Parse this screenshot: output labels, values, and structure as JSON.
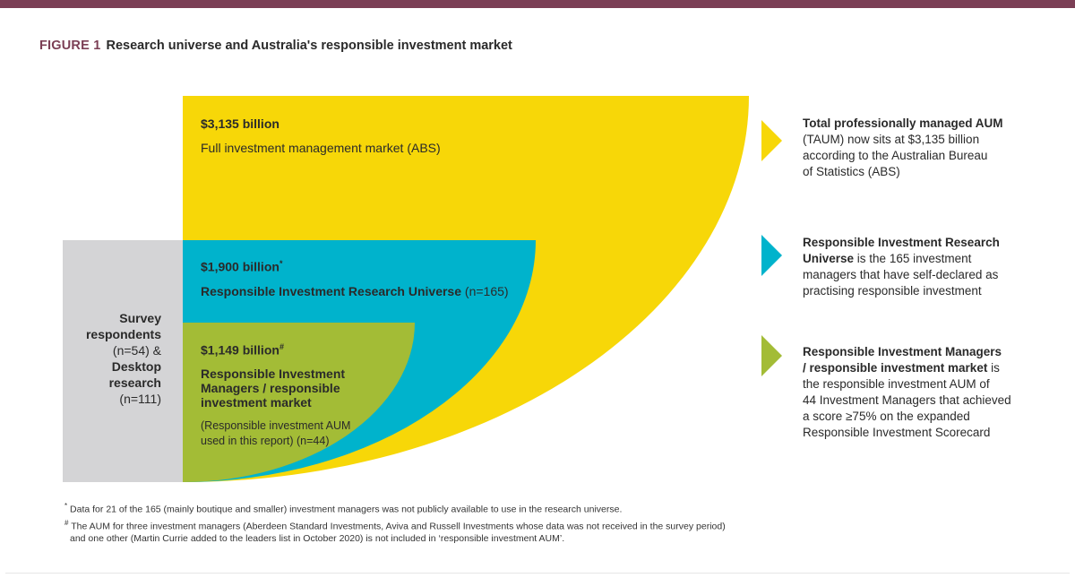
{
  "figure": {
    "number": "FIGURE 1",
    "title": "Research universe and Australia's responsible investment market"
  },
  "colors": {
    "yellow": "#f7d708",
    "blue": "#00b3cc",
    "green": "#a3bc36",
    "grey": "#d4d4d6",
    "accent": "#7b3f55"
  },
  "tiers": {
    "full_market": {
      "value": "$3,135 billion",
      "label": "Full investment management market (ABS)"
    },
    "research_universe": {
      "value": "$1,900 billion",
      "marker": "*",
      "label": "Responsible Investment Research Universe",
      "n": "(n=165)"
    },
    "ri_managers": {
      "value": "$1,149 billion",
      "marker": "#",
      "label_line1": "Responsible Investment",
      "label_line2": "Managers / responsible",
      "label_line3": "investment market",
      "sub_line1": "(Responsible investment AUM",
      "sub_line2": "used in this report) (n=44)"
    }
  },
  "survey": {
    "line1": "Survey",
    "line2": "respondents",
    "line3": "(n=54) &",
    "line4": "Desktop",
    "line5": "research",
    "line6": "(n=111)"
  },
  "notes": [
    {
      "bold1": "Total professionally managed AUM",
      "line2": "(TAUM) now sits at $3,135 billion",
      "line3": "according to the Australian Bureau",
      "line4": "of Statistics (ABS)"
    },
    {
      "bold1": "Responsible Investment Research",
      "bold2": "Universe",
      "rest2": " is the 165 investment",
      "line3": "managers that have self-declared as",
      "line4": "practising responsible investment"
    },
    {
      "bold1": "Responsible Investment Managers",
      "bold2": "/ responsible investment market",
      "rest2": " is",
      "line3": "the responsible investment AUM of",
      "line4": "44 Investment Managers that achieved",
      "line5": "a score ≥75% on the expanded",
      "line6": "Responsible Investment Scorecard"
    }
  ],
  "footnotes": {
    "f1_marker": "*",
    "f1": "Data for 21 of the 165 (mainly boutique and smaller) investment managers was not publicly available to use in the research universe.",
    "f2_marker": "#",
    "f2_line1": "The AUM for three investment managers (Aberdeen Standard Investments, Aviva and Russell Investments whose data was not received in the survey period)",
    "f2_line2": "and one other (Martin Currie added to the leaders list in October 2020) is not included in ‘responsible investment AUM’."
  }
}
